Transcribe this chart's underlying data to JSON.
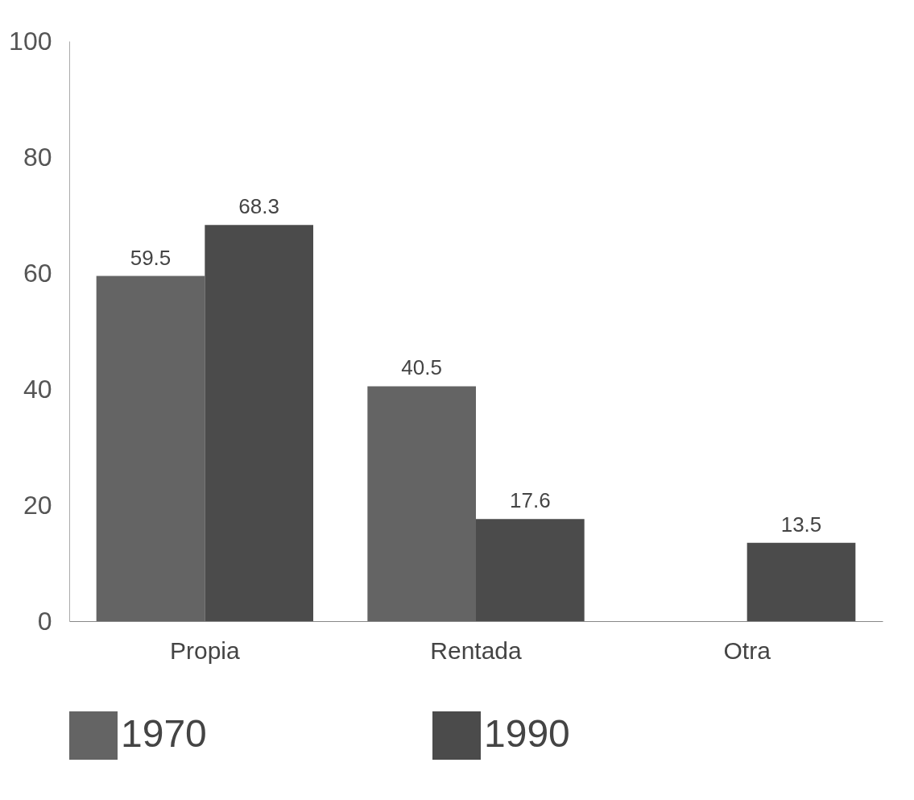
{
  "chart_data": {
    "type": "bar",
    "categories": [
      "Propia",
      "Rentada",
      "Otra"
    ],
    "series": [
      {
        "name": "1970",
        "color": "#646464",
        "values": [
          59.5,
          40.5,
          null
        ]
      },
      {
        "name": "1990",
        "color": "#4b4b4b",
        "values": [
          68.3,
          17.6,
          13.5
        ]
      }
    ],
    "ylim": [
      0,
      100
    ],
    "yticks": [
      0,
      20,
      40,
      60,
      80,
      100
    ],
    "grid": false,
    "legend": "bottom",
    "data_labels": true
  }
}
